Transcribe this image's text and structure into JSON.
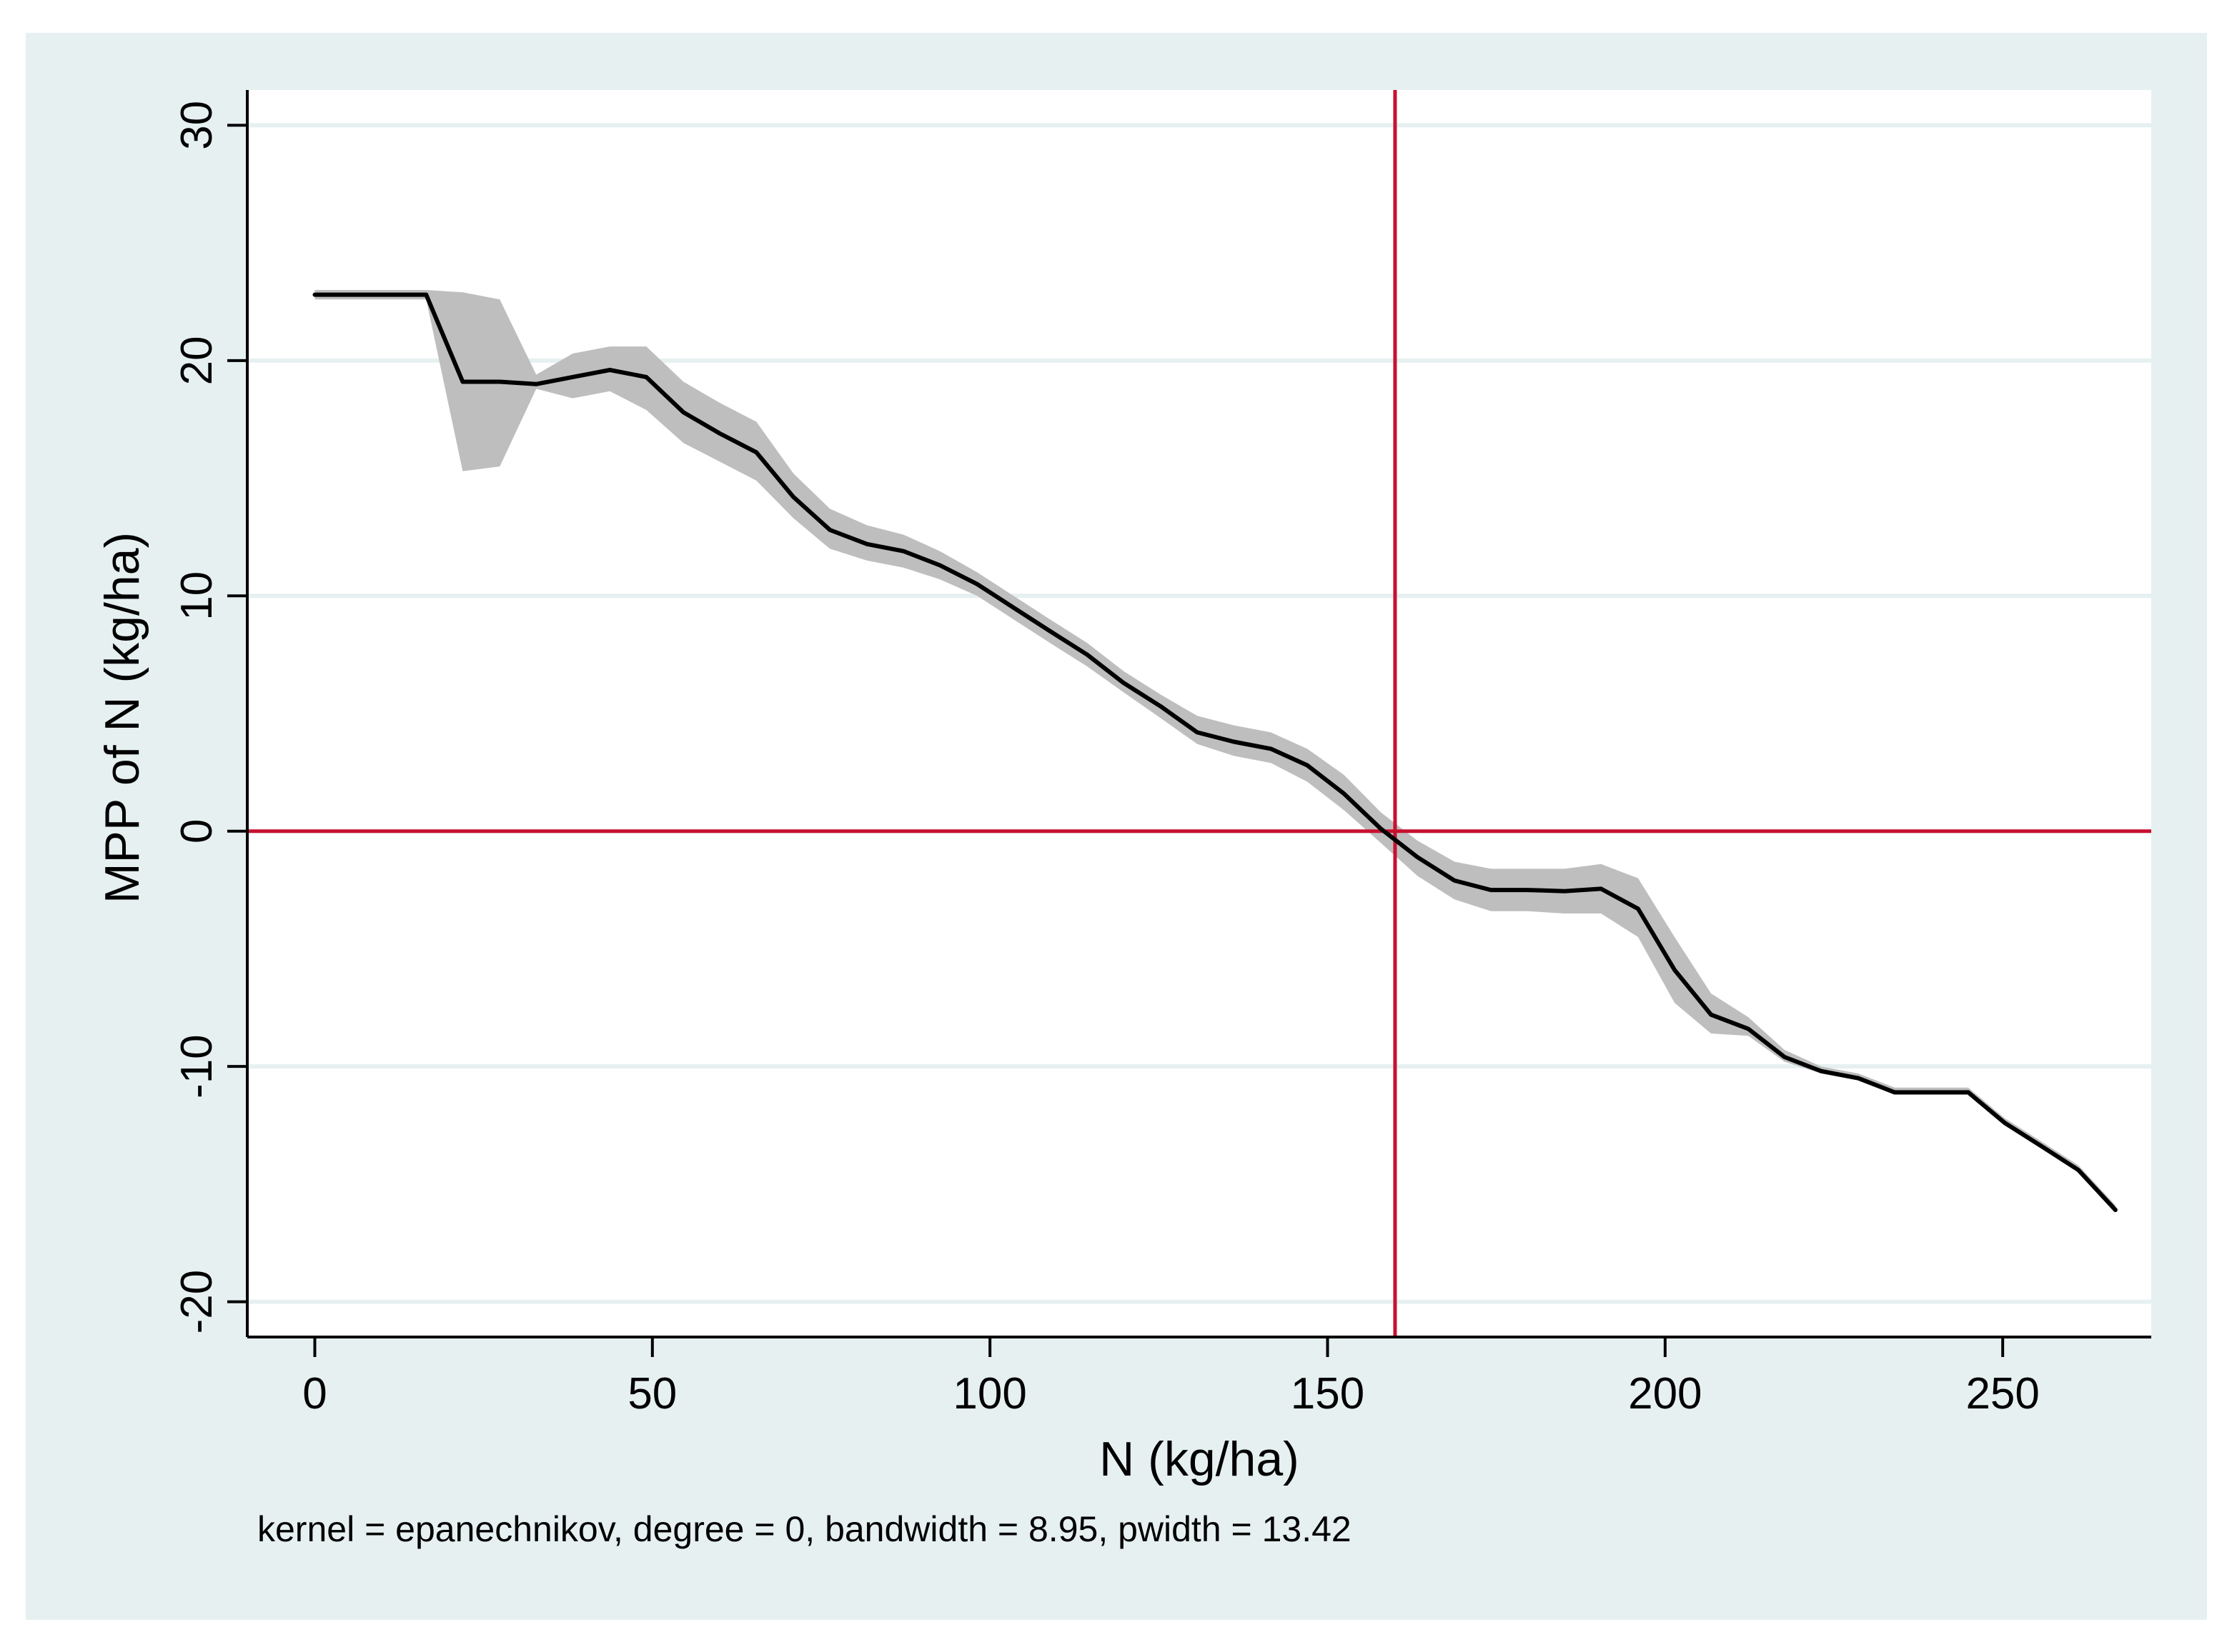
{
  "chart_data": {
    "type": "line",
    "title": "",
    "xlabel": "N (kg/ha)",
    "ylabel": "MPP of N (kg/ha)",
    "note": "kernel = epanechnikov, degree = 0, bandwidth = 8.95, pwidth = 13.42",
    "xlim": [
      -10,
      272
    ],
    "ylim": [
      -21.5,
      31.5
    ],
    "xticks": [
      {
        "value": 0,
        "label": "0"
      },
      {
        "value": 50,
        "label": "50"
      },
      {
        "value": 100,
        "label": "100"
      },
      {
        "value": 150,
        "label": "150"
      },
      {
        "value": 200,
        "label": "200"
      },
      {
        "value": 250,
        "label": "250"
      }
    ],
    "yticks": [
      {
        "value": -20,
        "label": "-20"
      },
      {
        "value": -10,
        "label": "-10"
      },
      {
        "value": 0,
        "label": "0"
      },
      {
        "value": 10,
        "label": "10"
      },
      {
        "value": 20,
        "label": "20"
      },
      {
        "value": 30,
        "label": "30"
      }
    ],
    "grid": true,
    "reference_lines": [
      {
        "axis": "x",
        "value": 160,
        "color": "#c8102e"
      },
      {
        "axis": "y",
        "value": 0,
        "color": "#c8102e"
      }
    ],
    "series": [
      {
        "name": "MPP of N",
        "color": "#000000",
        "band_color": "#bebebe",
        "x": [
          0,
          16.5,
          21.9,
          27.4,
          32.8,
          38.2,
          43.7,
          49.1,
          54.6,
          60.0,
          65.4,
          70.9,
          76.3,
          81.8,
          87.2,
          92.6,
          98.1,
          103.5,
          108.9,
          114.4,
          119.8,
          125.3,
          130.7,
          136.1,
          141.6,
          147.0,
          152.4,
          157.9,
          163.3,
          168.8,
          174.2,
          179.6,
          185.1,
          190.5,
          196.0,
          201.4,
          206.8,
          212.3,
          217.7,
          223.1,
          228.6,
          234.0,
          239.5,
          244.9,
          250.3,
          255.8,
          261.2,
          266.7
        ],
        "y": [
          22.8,
          22.8,
          19.1,
          19.1,
          19.0,
          19.3,
          19.6,
          19.3,
          17.8,
          16.9,
          16.1,
          14.2,
          12.8,
          12.2,
          11.9,
          11.3,
          10.5,
          9.5,
          8.5,
          7.5,
          6.3,
          5.3,
          4.2,
          3.8,
          3.5,
          2.8,
          1.6,
          0.1,
          -1.1,
          -2.1,
          -2.5,
          -2.5,
          -2.55,
          -2.45,
          -3.3,
          -5.9,
          -7.8,
          -8.4,
          -9.6,
          -10.2,
          -10.5,
          -11.1,
          -11.1,
          -11.1,
          -12.4,
          -13.4,
          -14.4,
          -16.1
        ],
        "lower": [
          22.6,
          22.6,
          15.3,
          15.5,
          18.8,
          18.4,
          18.7,
          17.9,
          16.5,
          15.7,
          14.9,
          13.3,
          12.0,
          11.5,
          11.2,
          10.7,
          10.0,
          9.0,
          8.0,
          7.0,
          5.9,
          4.8,
          3.7,
          3.2,
          2.9,
          2.1,
          0.9,
          -0.5,
          -1.9,
          -2.9,
          -3.4,
          -3.4,
          -3.5,
          -3.5,
          -4.5,
          -7.3,
          -8.6,
          -8.7,
          -9.8,
          -10.3,
          -10.6,
          -11.2,
          -11.2,
          -11.2,
          -12.5,
          -13.5,
          -14.5,
          -16.2
        ],
        "upper": [
          23.0,
          23.0,
          22.9,
          22.6,
          19.4,
          20.3,
          20.6,
          20.6,
          19.1,
          18.2,
          17.4,
          15.2,
          13.7,
          13.0,
          12.6,
          11.9,
          11.0,
          10.0,
          9.0,
          8.0,
          6.8,
          5.8,
          4.9,
          4.5,
          4.2,
          3.5,
          2.4,
          0.8,
          -0.4,
          -1.3,
          -1.6,
          -1.6,
          -1.6,
          -1.4,
          -2.0,
          -4.5,
          -6.9,
          -7.9,
          -9.3,
          -10.0,
          -10.3,
          -10.9,
          -10.9,
          -10.9,
          -12.2,
          -13.2,
          -14.2,
          -15.9
        ]
      }
    ]
  }
}
